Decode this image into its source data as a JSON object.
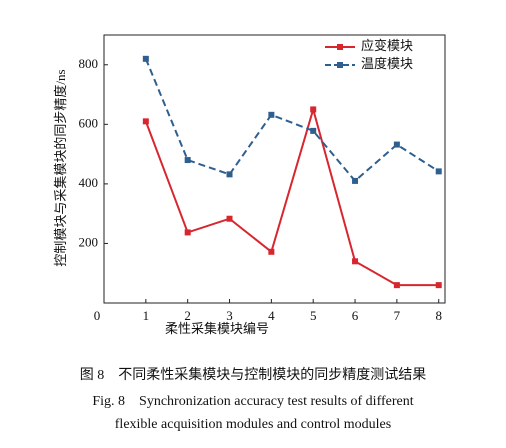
{
  "chart_data": {
    "type": "line",
    "x_label": "柔性采集模块编号",
    "y_label": "控制模块与采集模块的同步精度/ns",
    "x": [
      1,
      2,
      3,
      4,
      5,
      6,
      7,
      8
    ],
    "series": [
      {
        "name": "应变模块",
        "color": "#d8262f",
        "dash": false,
        "values": [
          610,
          237,
          283,
          172,
          650,
          140,
          60,
          60
        ]
      },
      {
        "name": "温度模块",
        "color": "#2f5f8f",
        "dash": true,
        "values": [
          820,
          480,
          432,
          632,
          578,
          410,
          532,
          442
        ]
      }
    ],
    "xlim": [
      0,
      8.15
    ],
    "ylim": [
      0,
      900
    ],
    "xticks": [
      0,
      1,
      2,
      3,
      4,
      5,
      6,
      7,
      8
    ],
    "yticks": [
      200,
      400,
      600,
      800
    ],
    "legend": "upper right"
  },
  "caption": {
    "cn": "图 8　不同柔性采集模块与控制模块的同步精度测试结果",
    "en_line1": "Fig. 8　Synchronization accuracy test results of different",
    "en_line2": "flexible acquisition modules and control modules"
  }
}
